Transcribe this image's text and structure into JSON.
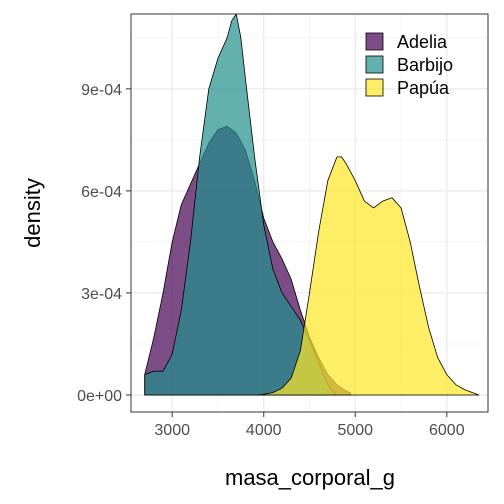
{
  "chart_data": {
    "type": "area",
    "subtype": "density",
    "xlabel": "masa_corporal_g",
    "ylabel": "density",
    "xlim": [
      2550,
      6450
    ],
    "ylim": [
      -5e-05,
      0.00112
    ],
    "x_ticks": [
      3000,
      4000,
      5000,
      6000
    ],
    "x_tick_labels": [
      "3000",
      "4000",
      "5000",
      "6000"
    ],
    "y_ticks": [
      0,
      0.0003,
      0.0006,
      0.0009
    ],
    "y_tick_labels": [
      "0e+00",
      "3e-04",
      "6e-04",
      "9e-04"
    ],
    "grid": true,
    "legend_position": "top-right",
    "series": [
      {
        "name": "Adelia",
        "color": "#440154",
        "opacity": 0.7,
        "points": [
          [
            2700,
            0.0
          ],
          [
            2700,
            6e-05
          ],
          [
            2800,
            0.00017
          ],
          [
            2900,
            0.0003
          ],
          [
            3000,
            0.00045
          ],
          [
            3100,
            0.00056
          ],
          [
            3200,
            0.00062
          ],
          [
            3300,
            0.00068
          ],
          [
            3400,
            0.00074
          ],
          [
            3500,
            0.00078
          ],
          [
            3600,
            0.00079
          ],
          [
            3700,
            0.00077
          ],
          [
            3800,
            0.00072
          ],
          [
            3900,
            0.00063
          ],
          [
            4000,
            0.00052
          ],
          [
            4100,
            0.00045
          ],
          [
            4200,
            0.0004
          ],
          [
            4300,
            0.00034
          ],
          [
            4400,
            0.00025
          ],
          [
            4500,
            0.00017
          ],
          [
            4600,
            0.00011
          ],
          [
            4700,
            6e-05
          ],
          [
            4800,
            3e-05
          ],
          [
            4900,
            1.2e-05
          ],
          [
            4950,
            5e-06
          ],
          [
            4950,
            0.0
          ]
        ]
      },
      {
        "name": "Barbijo",
        "color": "#21908C",
        "opacity": 0.7,
        "points": [
          [
            2700,
            0.0
          ],
          [
            2700,
            6e-05
          ],
          [
            2800,
            7e-05
          ],
          [
            2900,
            7e-05
          ],
          [
            3000,
            0.00012
          ],
          [
            3100,
            0.00025
          ],
          [
            3200,
            0.00045
          ],
          [
            3300,
            0.0007
          ],
          [
            3400,
            0.0009
          ],
          [
            3500,
            0.00099
          ],
          [
            3600,
            0.00105
          ],
          [
            3650,
            0.0011
          ],
          [
            3700,
            0.00112
          ],
          [
            3750,
            0.00105
          ],
          [
            3800,
            0.00093
          ],
          [
            3900,
            0.0007
          ],
          [
            4000,
            0.0005
          ],
          [
            4100,
            0.00037
          ],
          [
            4200,
            0.0003
          ],
          [
            4300,
            0.00026
          ],
          [
            4400,
            0.00022
          ],
          [
            4500,
            0.00016
          ],
          [
            4600,
            9.5e-05
          ],
          [
            4700,
            3e-05
          ],
          [
            4750,
            1.2e-05
          ],
          [
            4800,
            0.0
          ]
        ]
      },
      {
        "name": "Papúa",
        "color": "#FDE725",
        "opacity": 0.7,
        "points": [
          [
            3950,
            0.0
          ],
          [
            4000,
            2e-06
          ],
          [
            4100,
            7e-06
          ],
          [
            4200,
            2e-05
          ],
          [
            4300,
            5e-05
          ],
          [
            4400,
            0.00013
          ],
          [
            4500,
            0.0003
          ],
          [
            4600,
            0.00048
          ],
          [
            4700,
            0.00063
          ],
          [
            4800,
            0.0007
          ],
          [
            4850,
            0.0007
          ],
          [
            4900,
            0.00068
          ],
          [
            5000,
            0.00063
          ],
          [
            5100,
            0.00057
          ],
          [
            5200,
            0.00055
          ],
          [
            5300,
            0.00057
          ],
          [
            5400,
            0.00058
          ],
          [
            5500,
            0.00055
          ],
          [
            5600,
            0.00045
          ],
          [
            5700,
            0.00032
          ],
          [
            5800,
            0.0002
          ],
          [
            5900,
            0.00011
          ],
          [
            6000,
            6e-05
          ],
          [
            6100,
            3e-05
          ],
          [
            6200,
            1.5e-05
          ],
          [
            6300,
            5e-06
          ],
          [
            6350,
            0.0
          ]
        ]
      }
    ]
  }
}
